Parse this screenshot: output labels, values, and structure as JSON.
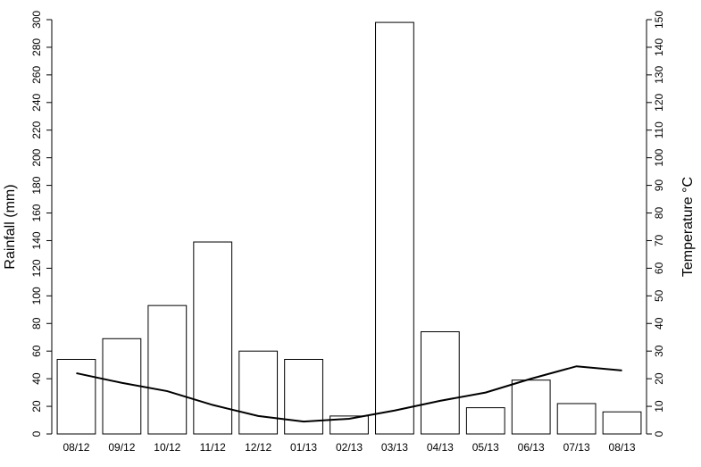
{
  "chart_data": {
    "type": "bar",
    "categories": [
      "08/12",
      "09/12",
      "10/12",
      "11/12",
      "12/12",
      "01/13",
      "02/13",
      "03/13",
      "04/13",
      "05/13",
      "06/13",
      "07/13",
      "08/13"
    ],
    "y_label": "Rainfall (mm)",
    "y2_label": "Temperature °C",
    "series": [
      {
        "name": "Rainfall",
        "type": "bar",
        "color": "#ffffff",
        "values": [
          54,
          69,
          93,
          139,
          60,
          54,
          13,
          298,
          74,
          19,
          39,
          22,
          16
        ]
      },
      {
        "name": "Temperature",
        "type": "line",
        "axis": "y2",
        "color": "#000000",
        "values": [
          22,
          18.5,
          15.5,
          10.5,
          6.5,
          4.5,
          5.5,
          8.5,
          12,
          15,
          20,
          24.5,
          23
        ]
      }
    ],
    "ylim": [
      0,
      300
    ],
    "yticks": [
      0,
      20,
      40,
      60,
      80,
      100,
      120,
      140,
      160,
      180,
      200,
      220,
      240,
      260,
      280,
      300
    ],
    "y2lim": [
      0,
      150
    ],
    "y2ticks": [
      0,
      10,
      20,
      30,
      40,
      50,
      60,
      70,
      80,
      90,
      100,
      110,
      120,
      130,
      140,
      150
    ]
  }
}
